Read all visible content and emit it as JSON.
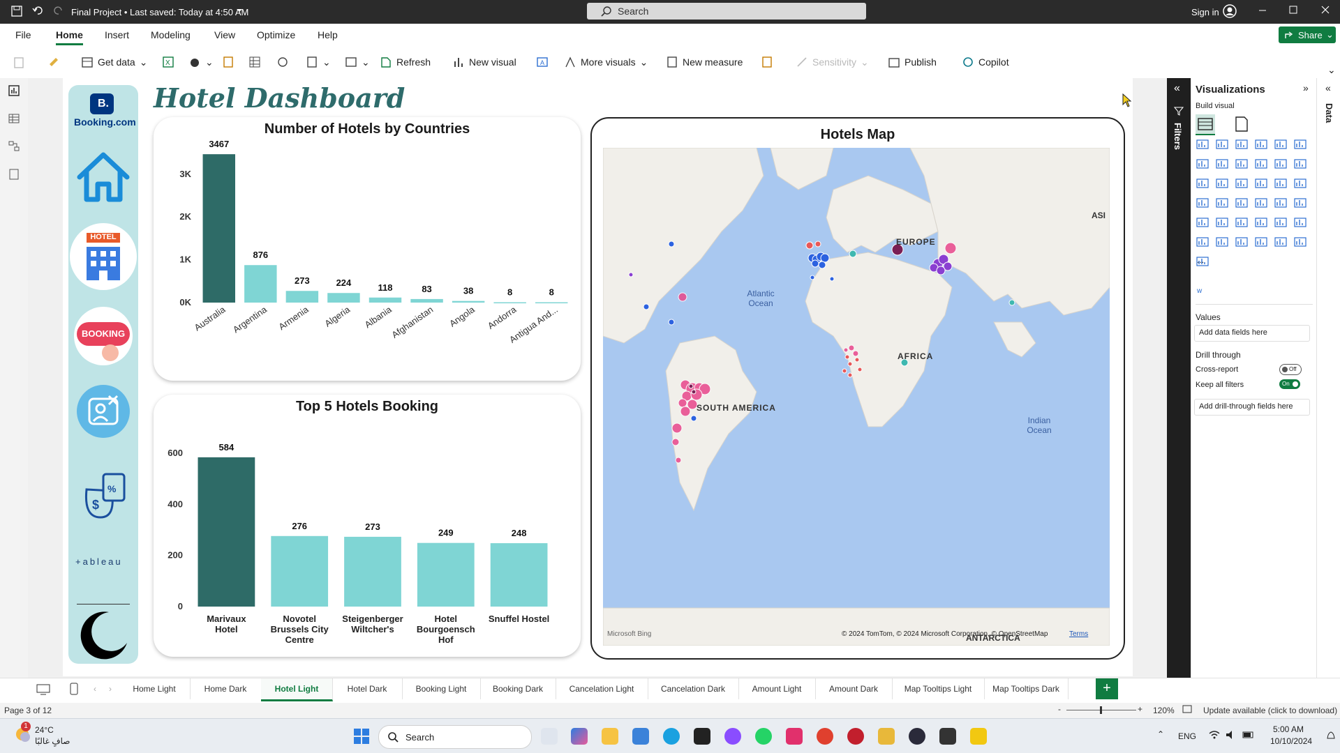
{
  "titlebar": {
    "title": "Final Project • Last saved: Today at 4:50 AM",
    "search_placeholder": "Search",
    "signin": "Sign in"
  },
  "menu": {
    "items": [
      "File",
      "Home",
      "Insert",
      "Modeling",
      "View",
      "Optimize",
      "Help"
    ],
    "active": "Home",
    "share": "Share"
  },
  "ribbon": {
    "get_data": "Get data",
    "refresh": "Refresh",
    "new_visual": "New visual",
    "more_visuals": "More visuals",
    "new_measure": "New measure",
    "sensitivity": "Sensitivity",
    "publish": "Publish",
    "copilot": "Copilot"
  },
  "dashboard": {
    "title": "Hotel Dashboard",
    "sidebar_labels": {
      "booking_logo": "Booking.com",
      "hotel": "HOTEL",
      "booking": "BOOKING",
      "tableau": "+ableau"
    }
  },
  "colors": {
    "dark_teal": "#2e6b67",
    "light_teal": "#7fd5d4",
    "sidebar_bg": "#bfe4e6",
    "title_color": "#2e6b6b",
    "map_water": "#a9c8f0",
    "map_land": "#f1efea"
  },
  "chart_data": [
    {
      "type": "bar",
      "title": "Number of Hotels by Countries",
      "categories": [
        "Australia",
        "Argentina",
        "Armenia",
        "Algeria",
        "Albania",
        "Afghanistan",
        "Angola",
        "Andorra",
        "Antigua And..."
      ],
      "values": [
        3467,
        876,
        273,
        224,
        118,
        83,
        38,
        8,
        8
      ],
      "value_labels": [
        "3467",
        "876",
        "273",
        "224",
        "118",
        "83",
        "38",
        "8",
        "8"
      ],
      "y_ticks": [
        "0K",
        "1K",
        "2K",
        "3K"
      ],
      "ylim": [
        0,
        3600
      ],
      "highlight_index": 0
    },
    {
      "type": "bar",
      "title": "Top 5 Hotels Booking",
      "categories": [
        "Marivaux Hotel",
        "Novotel Brussels City Centre",
        "Steigenberger Wiltcher's",
        "Hotel Bourgoensch Hof",
        "Snuffel Hostel"
      ],
      "values": [
        584,
        276,
        273,
        249,
        248
      ],
      "value_labels": [
        "584",
        "276",
        "273",
        "249",
        "248"
      ],
      "y_ticks": [
        "0",
        "200",
        "400",
        "600"
      ],
      "ylim": [
        0,
        600
      ],
      "highlight_index": 0
    }
  ],
  "map": {
    "title": "Hotels Map",
    "labels": {
      "europe": "EUROPE",
      "asia": "ASI",
      "africa": "AFRICA",
      "south_america": "SOUTH AMERICA",
      "atlantic": "Atlantic Ocean",
      "indian": "Indian Ocean",
      "antarctica": "ANTARCTICA"
    },
    "attribution": "© 2024 TomTom, © 2024 Microsoft Corporation, © OpenStreetMap",
    "terms": "Terms",
    "bing": "Microsoft Bing"
  },
  "vispane": {
    "title": "Visualizations",
    "build_visual": "Build visual",
    "values": "Values",
    "add_data": "Add data fields here",
    "drill": "Drill through",
    "cross_report": "Cross-report",
    "off": "Off",
    "keep_filters": "Keep all filters",
    "on": "On",
    "add_drill": "Add drill-through fields here",
    "filters": "Filters",
    "data": "Data",
    "more": "..."
  },
  "tabs": {
    "items": [
      "Home Light",
      "Home Dark",
      "Hotel Light",
      "Hotel Dark",
      "Booking Light",
      "Booking Dark",
      "Cancelation Light",
      "Cancelation Dark",
      "Amount Light",
      "Amount Dark",
      "Map Tooltips Light",
      "Map Tooltips Dark"
    ],
    "active": "Hotel Light",
    "add": "+"
  },
  "status": {
    "page": "Page 3 of 12",
    "zoom": "120%",
    "update": "Update available (click to download)"
  },
  "taskbar": {
    "temp": "24°C",
    "weather": "صافٍ غالبًا",
    "search": "Search",
    "lang": "ENG",
    "time": "5:00 AM",
    "date": "10/10/2024",
    "badge": "1"
  }
}
